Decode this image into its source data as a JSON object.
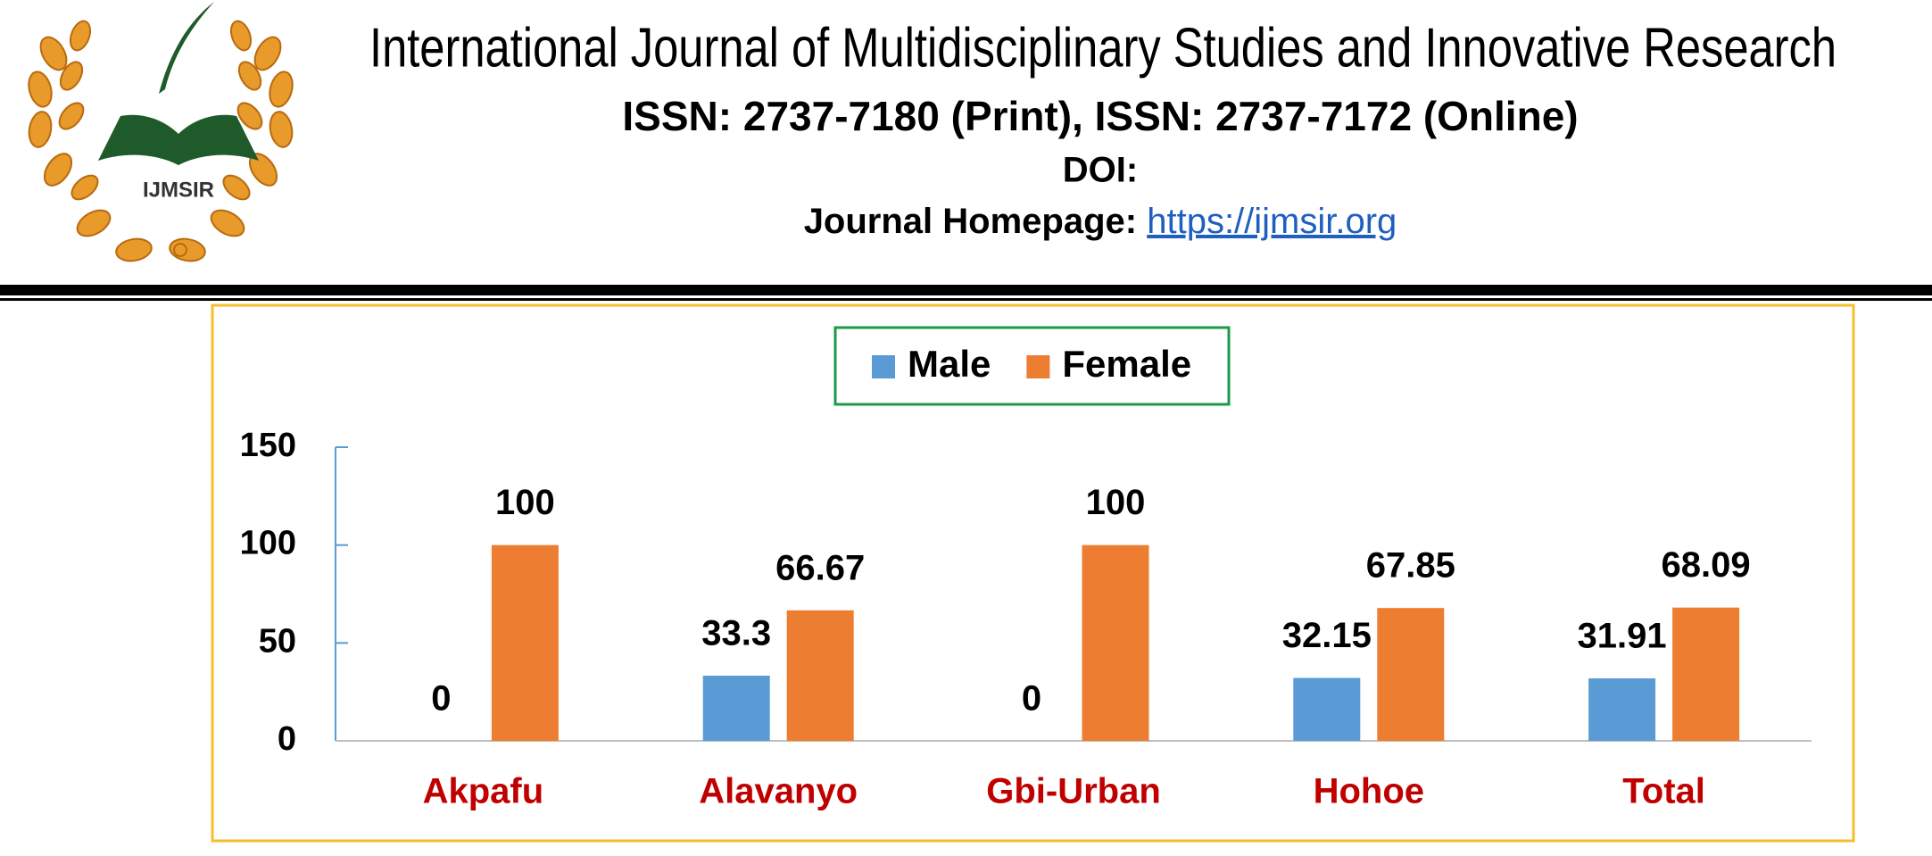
{
  "header": {
    "title": "International Journal of Multidisciplinary Studies and Innovative Research",
    "issn": "ISSN: 2737-7180 (Print), ISSN: 2737-7172 (Online)",
    "doi": "DOI:",
    "homepage_label": "Journal Homepage:",
    "homepage_url": "https://ijmsir.org",
    "logo_text": "IJMSIR"
  },
  "chart_data": {
    "type": "bar",
    "categories": [
      "Akpafu",
      "Alavanyo",
      "Gbi-Urban",
      "Hohoe",
      "Total"
    ],
    "series": [
      {
        "name": "Male",
        "color": "#5b9bd5",
        "values": [
          0,
          33.3,
          0,
          32.15,
          31.91
        ]
      },
      {
        "name": "Female",
        "color": "#ed7d31",
        "values": [
          100,
          66.67,
          100,
          67.85,
          68.09
        ]
      }
    ],
    "ylim": [
      0,
      150
    ],
    "yticks": [
      0,
      50,
      100,
      150
    ]
  }
}
